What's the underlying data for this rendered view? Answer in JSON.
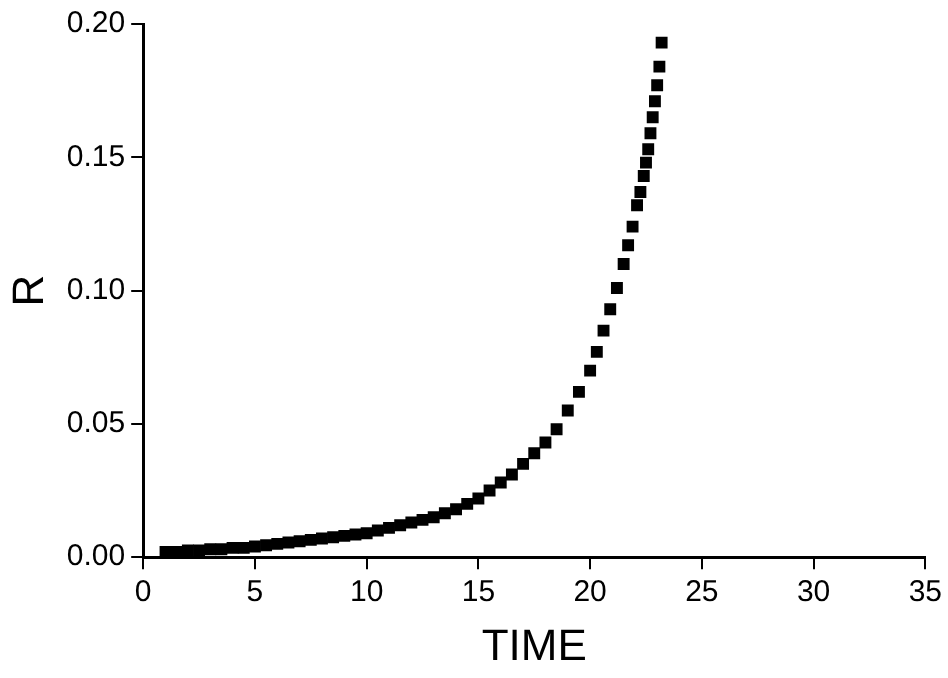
{
  "chart_data": {
    "type": "scatter",
    "xlabel": "TIME",
    "ylabel": "R",
    "marker": "square",
    "grid": false,
    "legend": false,
    "xlim": [
      0,
      35
    ],
    "xticks": [
      0,
      5,
      10,
      15,
      20,
      25,
      30,
      35
    ],
    "ylim": [
      0,
      0.2
    ],
    "yticks": [
      {
        "value": 0,
        "label": "0.00"
      },
      {
        "value": 0.05,
        "label": "0.05"
      },
      {
        "value": 0.1,
        "label": "0.10"
      },
      {
        "value": 0.15,
        "label": "0.15"
      },
      {
        "value": 0.2,
        "label": "0.20"
      }
    ],
    "series": [
      {
        "color": "#000000",
        "x": [
          1,
          1.5,
          2,
          2.5,
          3,
          3.5,
          4,
          4.5,
          5,
          5.5,
          6,
          6.5,
          7,
          7.5,
          8,
          8.5,
          9,
          9.5,
          10,
          10.5,
          11,
          11.5,
          12,
          12.5,
          13,
          13.5,
          14,
          14.5,
          15,
          15.5,
          16,
          16.5,
          17,
          17.5,
          18,
          18.5,
          19,
          19.5,
          20,
          20.3,
          20.6,
          20.9,
          21.2,
          21.5,
          21.7,
          21.9,
          22.1,
          22.25,
          22.4,
          22.5,
          22.6,
          22.7,
          22.8,
          22.9,
          23,
          23.1,
          23.2
        ],
        "values": [
          0.002,
          0.002,
          0.0025,
          0.0025,
          0.003,
          0.003,
          0.0035,
          0.0035,
          0.004,
          0.0045,
          0.005,
          0.0055,
          0.006,
          0.0065,
          0.007,
          0.0075,
          0.008,
          0.0085,
          0.009,
          0.01,
          0.011,
          0.012,
          0.013,
          0.014,
          0.015,
          0.0165,
          0.018,
          0.02,
          0.022,
          0.025,
          0.028,
          0.031,
          0.035,
          0.039,
          0.043,
          0.048,
          0.055,
          0.062,
          0.07,
          0.077,
          0.085,
          0.093,
          0.101,
          0.11,
          0.117,
          0.124,
          0.132,
          0.137,
          0.143,
          0.148,
          0.153,
          0.159,
          0.165,
          0.171,
          0.177,
          0.184,
          0.193
        ]
      }
    ]
  }
}
